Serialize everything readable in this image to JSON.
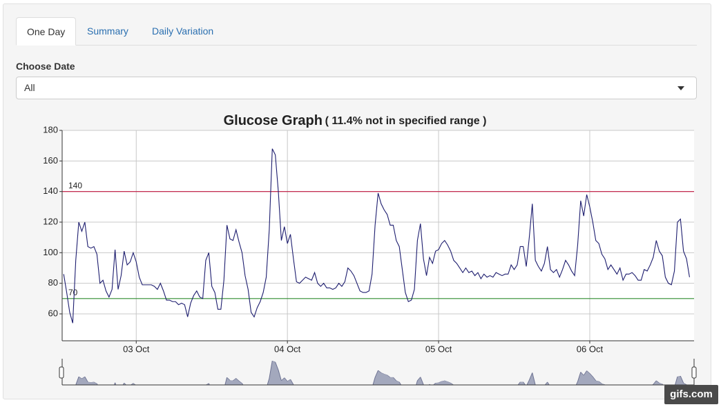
{
  "tabs": [
    "One Day",
    "Summary",
    "Daily Variation"
  ],
  "date_input": {
    "label": "Choose Date",
    "selected": "All"
  },
  "watermark": "gifs.com",
  "chart_data": {
    "type": "line",
    "title": "Glucose Graph",
    "subtitle": "( 11.4% not in specified range )",
    "color": "#1c1c6e",
    "grid": true,
    "xlim": [
      2.51,
      6.69
    ],
    "xticks": [
      {
        "value": 3,
        "label": "03 Oct"
      },
      {
        "value": 4,
        "label": "04 Oct"
      },
      {
        "value": 5,
        "label": "05 Oct"
      },
      {
        "value": 6,
        "label": "06 Oct"
      }
    ],
    "ylim": [
      42.4,
      180
    ],
    "yticks": [
      60,
      80,
      100,
      120,
      140,
      160,
      180
    ],
    "ref_lines": [
      {
        "value": 140,
        "color": "#c0143c"
      },
      {
        "value": 70,
        "color": "#2e8b2e"
      }
    ],
    "x": [
      2.52,
      2.54,
      2.56,
      2.58,
      2.6,
      2.62,
      2.64,
      2.66,
      2.68,
      2.7,
      2.72,
      2.74,
      2.76,
      2.78,
      2.8,
      2.82,
      2.84,
      2.86,
      2.88,
      2.9,
      2.92,
      2.94,
      2.96,
      2.98,
      3.0,
      3.02,
      3.04,
      3.06,
      3.08,
      3.1,
      3.12,
      3.14,
      3.16,
      3.18,
      3.2,
      3.22,
      3.24,
      3.26,
      3.28,
      3.3,
      3.32,
      3.34,
      3.36,
      3.38,
      3.4,
      3.42,
      3.44,
      3.46,
      3.48,
      3.5,
      3.52,
      3.54,
      3.56,
      3.58,
      3.6,
      3.62,
      3.64,
      3.66,
      3.68,
      3.7,
      3.72,
      3.74,
      3.76,
      3.78,
      3.8,
      3.82,
      3.84,
      3.86,
      3.88,
      3.9,
      3.92,
      3.94,
      3.96,
      3.98,
      4.0,
      4.02,
      4.04,
      4.06,
      4.08,
      4.1,
      4.12,
      4.14,
      4.16,
      4.18,
      4.2,
      4.22,
      4.24,
      4.26,
      4.28,
      4.3,
      4.32,
      4.34,
      4.36,
      4.38,
      4.4,
      4.42,
      4.44,
      4.46,
      4.48,
      4.5,
      4.52,
      4.54,
      4.56,
      4.58,
      4.6,
      4.62,
      4.64,
      4.66,
      4.68,
      4.7,
      4.72,
      4.74,
      4.76,
      4.78,
      4.8,
      4.82,
      4.84,
      4.86,
      4.88,
      4.9,
      4.92,
      4.94,
      4.96,
      4.98,
      5.0,
      5.02,
      5.04,
      5.06,
      5.08,
      5.1,
      5.12,
      5.14,
      5.16,
      5.18,
      5.2,
      5.22,
      5.24,
      5.26,
      5.28,
      5.3,
      5.32,
      5.34,
      5.36,
      5.38,
      5.4,
      5.42,
      5.44,
      5.46,
      5.48,
      5.5,
      5.52,
      5.54,
      5.56,
      5.58,
      5.6,
      5.62,
      5.64,
      5.66,
      5.68,
      5.7,
      5.72,
      5.74,
      5.76,
      5.78,
      5.8,
      5.82,
      5.84,
      5.86,
      5.88,
      5.9,
      5.92,
      5.94,
      5.96,
      5.98,
      6.0,
      6.02,
      6.04,
      6.06,
      6.08,
      6.1,
      6.12,
      6.14,
      6.16,
      6.18,
      6.2,
      6.22,
      6.24,
      6.26,
      6.28,
      6.3,
      6.32,
      6.34,
      6.36,
      6.38,
      6.4,
      6.42,
      6.44,
      6.46,
      6.48,
      6.5,
      6.52,
      6.54,
      6.56,
      6.58,
      6.6,
      6.62,
      6.64,
      6.66
    ],
    "values": [
      86,
      74,
      61,
      54,
      95,
      120,
      114,
      120,
      104,
      103,
      104,
      99,
      80,
      82,
      75,
      71,
      76,
      102,
      76,
      85,
      101,
      92,
      94,
      100,
      94,
      84,
      79,
      79,
      79,
      79,
      78,
      76,
      80,
      75,
      69,
      69,
      68,
      68,
      66,
      67,
      66,
      58,
      67,
      72,
      75,
      71,
      70,
      95,
      100,
      78,
      74,
      63,
      63,
      82,
      118,
      109,
      108,
      115,
      107,
      100,
      85,
      76,
      61,
      58,
      64,
      68,
      74,
      84,
      115,
      168,
      164,
      140,
      108,
      117,
      106,
      112,
      96,
      81,
      80,
      82,
      84,
      83,
      82,
      87,
      80,
      78,
      80,
      77,
      77,
      76,
      77,
      80,
      78,
      81,
      90,
      88,
      85,
      80,
      75,
      74,
      74,
      75,
      86,
      118,
      139,
      132,
      128,
      125,
      118,
      118,
      108,
      104,
      89,
      74,
      68,
      69,
      76,
      108,
      119,
      96,
      85,
      97,
      93,
      101,
      102,
      106,
      108,
      105,
      101,
      95,
      93,
      90,
      87,
      90,
      87,
      88,
      85,
      87,
      83,
      86,
      84,
      85,
      84,
      87,
      86,
      85,
      86,
      86,
      92,
      89,
      92,
      104,
      104,
      91,
      110,
      132,
      95,
      91,
      88,
      93,
      104,
      89,
      87,
      89,
      84,
      89,
      95,
      92,
      88,
      85,
      105,
      134,
      124,
      138,
      130,
      120,
      108,
      106,
      99,
      96,
      89,
      92,
      89,
      86,
      90,
      82,
      86,
      86,
      87,
      85,
      82,
      82,
      89,
      88,
      92,
      97,
      108,
      101,
      98,
      84,
      80,
      79,
      88,
      120,
      122,
      101,
      96,
      84
    ]
  }
}
